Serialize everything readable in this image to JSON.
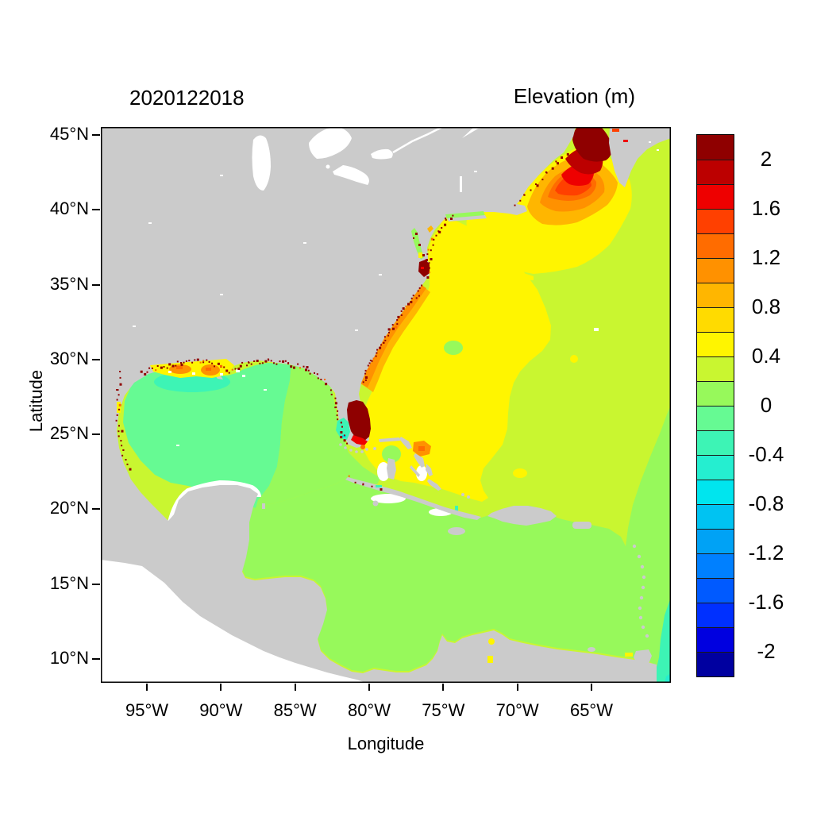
{
  "figure": {
    "left_title": "2020122018",
    "right_title": "Elevation (m)"
  },
  "axes": {
    "x": {
      "label": "Longitude",
      "tick_labels": [
        "95°W",
        "90°W",
        "85°W",
        "80°W",
        "75°W",
        "70°W",
        "65°W"
      ]
    },
    "y": {
      "label": "Latitude",
      "tick_labels": [
        "45°N",
        "40°N",
        "35°N",
        "30°N",
        "25°N",
        "20°N",
        "15°N",
        "10°N"
      ]
    }
  },
  "colorbar": {
    "tick_labels": [
      "2",
      "1.6",
      "1.2",
      "0.8",
      "0.4",
      "0",
      "-0.4",
      "-0.8",
      "-1.2",
      "-1.6",
      "-2"
    ]
  },
  "palette": {
    "land": "#CBCBCB",
    "no_data": "#FFFFFF",
    "frame": "#000000",
    "levels": [
      {
        "id": "c1",
        "from": 2.0,
        "to": 2.2,
        "color": "#8F0000"
      },
      {
        "id": "c2",
        "from": 1.8,
        "to": 2.0,
        "color": "#BC0000"
      },
      {
        "id": "c3",
        "from": 1.6,
        "to": 1.8,
        "color": "#EE0000"
      },
      {
        "id": "c4",
        "from": 1.4,
        "to": 1.6,
        "color": "#FF4000"
      },
      {
        "id": "c5",
        "from": 1.2,
        "to": 1.4,
        "color": "#FF6C00"
      },
      {
        "id": "c6",
        "from": 1.0,
        "to": 1.2,
        "color": "#FF9100"
      },
      {
        "id": "c7",
        "from": 0.8,
        "to": 1.0,
        "color": "#FFB600"
      },
      {
        "id": "c8",
        "from": 0.6,
        "to": 0.8,
        "color": "#FFDB00"
      },
      {
        "id": "c9",
        "from": 0.4,
        "to": 0.6,
        "color": "#FFF500"
      },
      {
        "id": "c10",
        "from": 0.2,
        "to": 0.4,
        "color": "#C9F630"
      },
      {
        "id": "c11",
        "from": 0.0,
        "to": 0.2,
        "color": "#97F95B"
      },
      {
        "id": "c12",
        "from": -0.2,
        "to": 0.0,
        "color": "#66FA93"
      },
      {
        "id": "c13",
        "from": -0.4,
        "to": -0.2,
        "color": "#3DF4B5"
      },
      {
        "id": "c14",
        "from": -0.6,
        "to": -0.4,
        "color": "#25EED0"
      },
      {
        "id": "c15",
        "from": -0.8,
        "to": -0.6,
        "color": "#00E5EE"
      },
      {
        "id": "c16",
        "from": -1.0,
        "to": -0.8,
        "color": "#00C3F2"
      },
      {
        "id": "c17",
        "from": -1.2,
        "to": -1.0,
        "color": "#00A2F5"
      },
      {
        "id": "c18",
        "from": -1.4,
        "to": -1.2,
        "color": "#0080FF"
      },
      {
        "id": "c19",
        "from": -1.6,
        "to": -1.4,
        "color": "#005AFF"
      },
      {
        "id": "c20",
        "from": -1.8,
        "to": -1.6,
        "color": "#0030FF"
      },
      {
        "id": "c21",
        "from": -2.0,
        "to": -1.8,
        "color": "#0000E0"
      },
      {
        "id": "c22",
        "from": -2.2,
        "to": -2.0,
        "color": "#0000A0"
      }
    ]
  },
  "chart_data": {
    "type": "heatmap",
    "title": "Elevation (m)",
    "timestamp_label": "2020122018",
    "variable": "sea surface elevation",
    "units": "m",
    "xlabel": "Longitude",
    "ylabel": "Latitude",
    "lon_range": [
      "98°W",
      "60°W"
    ],
    "lat_range": [
      "8.5°N",
      "45.5°N"
    ],
    "x_ticks": [
      "95°W",
      "90°W",
      "85°W",
      "80°W",
      "75°W",
      "70°W",
      "65°W"
    ],
    "y_ticks": [
      "45°N",
      "40°N",
      "35°N",
      "30°N",
      "25°N",
      "20°N",
      "15°N",
      "10°N"
    ],
    "contour_levels_m": [
      -2.2,
      -2.0,
      -1.8,
      -1.6,
      -1.4,
      -1.2,
      -1.0,
      -0.8,
      -0.6,
      -0.4,
      -0.2,
      0.0,
      0.2,
      0.4,
      0.6,
      0.8,
      1.0,
      1.2,
      1.4,
      1.6,
      1.8,
      2.0,
      2.2
    ],
    "colorbar_labels_m": [
      2,
      1.6,
      1.2,
      0.8,
      0.4,
      0,
      -0.4,
      -0.8,
      -1.2,
      -1.6,
      -2
    ],
    "legend_position": "right",
    "grid": false,
    "regions": [
      {
        "name": "Bay of Fundy / inner Gulf of Maine",
        "value_m": "> 2.0"
      },
      {
        "name": "Gulf of Maine concentric surge bands",
        "value_m": "0.6 to 2.0 decreasing offshore"
      },
      {
        "name": "open North Atlantic background",
        "value_m": "0.2 to 0.4"
      },
      {
        "name": "broad yellow pool off SE US coast and Bahamas",
        "value_m": "0.4 to 0.6"
      },
      {
        "name": "coastal band along Carolinas and Georgia",
        "value_m": "0.8 to 1.2"
      },
      {
        "name": "Pamlico/Albemarle sounds",
        "value_m": "> 2.0"
      },
      {
        "name": "southeast Florida (Biscayne Bay area)",
        "value_m": "> 2.0"
      },
      {
        "name": "Florida Bay patch",
        "value_m": "-0.4 to -0.2"
      },
      {
        "name": "eastern Gulf of Mexico",
        "value_m": "0.0 to 0.2"
      },
      {
        "name": "western and central Gulf of Mexico",
        "value_m": "-0.2 to 0.0"
      },
      {
        "name": "Louisiana-Texas shelf patch",
        "value_m": "-0.4 to -0.2"
      },
      {
        "name": "Mississippi delta coastal patches",
        "value_m": "0.4 to 1.2"
      },
      {
        "name": "Caribbean Sea",
        "value_m": "0.0 to 0.2"
      },
      {
        "name": "southeast corner east of Lesser Antilles",
        "value_m": "0.0 to 0.2"
      },
      {
        "name": "far southeast corner edge",
        "value_m": "-0.6 to -0.2"
      },
      {
        "name": "scattered coastal wet cells along Gulf and Atlantic shores",
        "value_m": "> 2.0"
      },
      {
        "name": "land",
        "value_m": "masked (gray)"
      },
      {
        "name": "Pacific side / unmodeled water and lakes",
        "value_m": "no data (white)"
      }
    ]
  }
}
